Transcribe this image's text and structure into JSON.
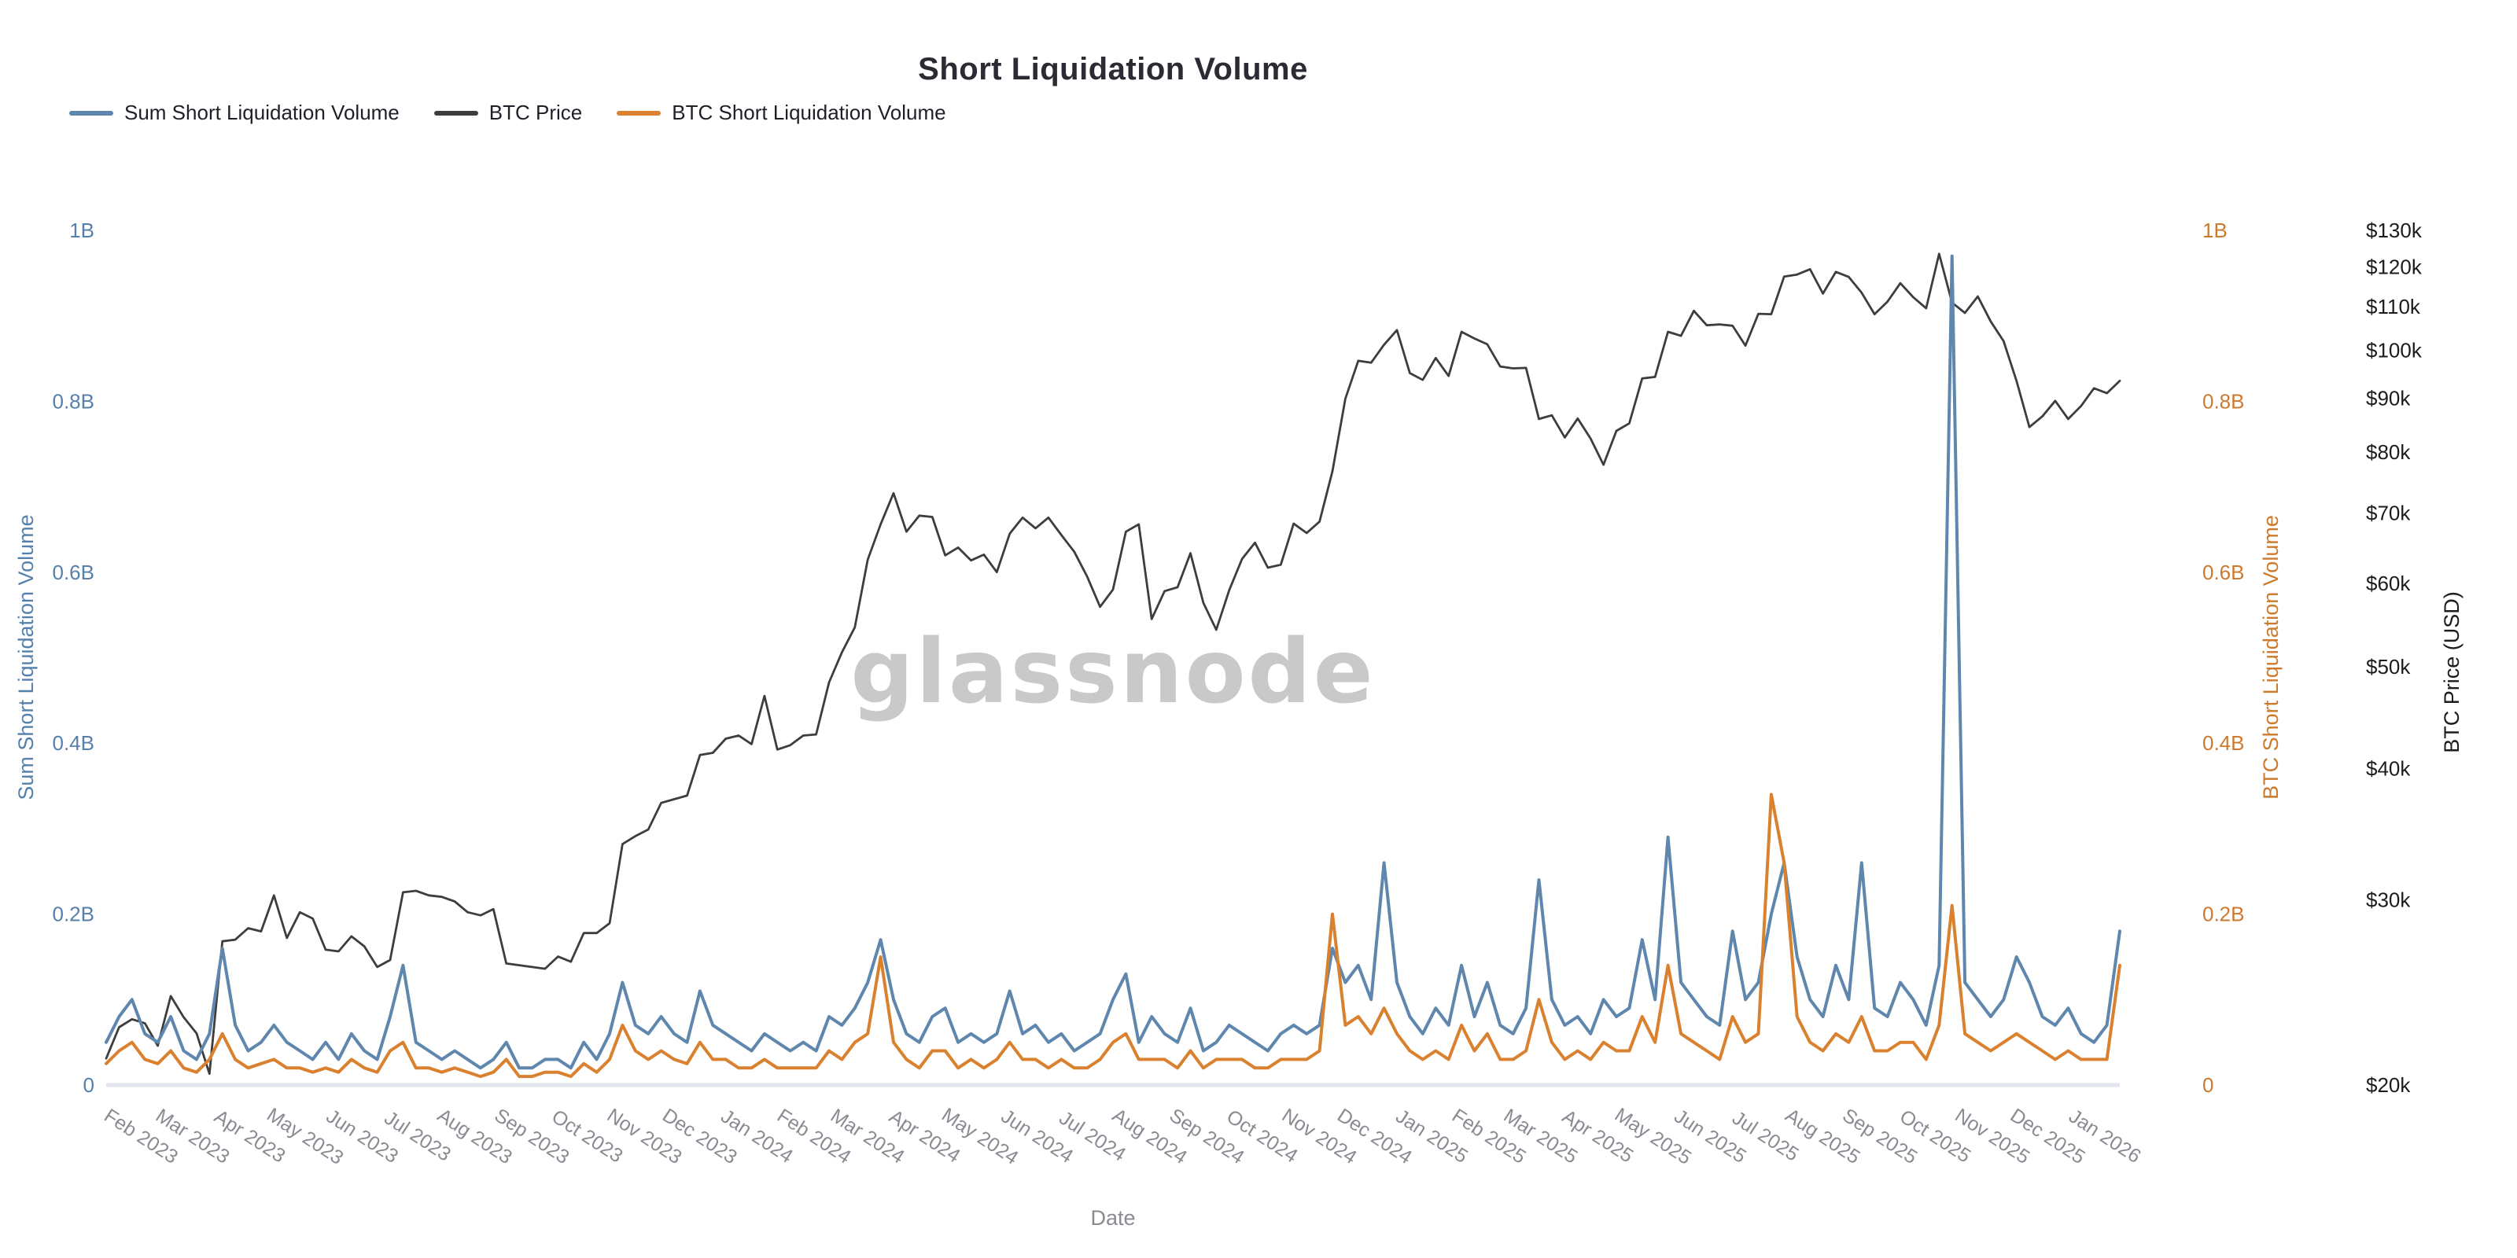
{
  "title": "Short Liquidation Volume",
  "watermark": "glassnode",
  "legend": {
    "items": [
      {
        "label": "Sum Short Liquidation Volume",
        "color": "#5f87ad"
      },
      {
        "label": "BTC Price",
        "color": "#3d3d3d"
      },
      {
        "label": "BTC Short Liquidation Volume",
        "color": "#d9812f"
      }
    ]
  },
  "axes": {
    "x": {
      "title": "Date",
      "label_color": "#8a8a92",
      "ticks": [
        {
          "label": "Feb 2023",
          "date": "2023-02-01"
        },
        {
          "label": "Mar 2023",
          "date": "2023-03-01"
        },
        {
          "label": "Apr 2023",
          "date": "2023-04-01"
        },
        {
          "label": "May 2023",
          "date": "2023-05-01"
        },
        {
          "label": "Jun 2023",
          "date": "2023-06-01"
        },
        {
          "label": "Jul 2023",
          "date": "2023-07-01"
        },
        {
          "label": "Aug 2023",
          "date": "2023-08-01"
        },
        {
          "label": "Sep 2023",
          "date": "2023-09-01"
        },
        {
          "label": "Oct 2023",
          "date": "2023-10-01"
        },
        {
          "label": "Nov 2023",
          "date": "2023-11-01"
        },
        {
          "label": "Dec 2023",
          "date": "2023-12-01"
        },
        {
          "label": "Jan 2024",
          "date": "2024-01-01"
        },
        {
          "label": "Feb 2024",
          "date": "2024-02-01"
        },
        {
          "label": "Mar 2024",
          "date": "2024-03-01"
        },
        {
          "label": "Apr 2024",
          "date": "2024-04-01"
        },
        {
          "label": "May 2024",
          "date": "2024-05-01"
        },
        {
          "label": "Jun 2024",
          "date": "2024-06-01"
        },
        {
          "label": "Jul 2024",
          "date": "2024-07-01"
        },
        {
          "label": "Aug 2024",
          "date": "2024-08-01"
        },
        {
          "label": "Sep 2024",
          "date": "2024-09-01"
        },
        {
          "label": "Oct 2024",
          "date": "2024-10-01"
        },
        {
          "label": "Nov 2024",
          "date": "2024-11-01"
        },
        {
          "label": "Dec 2024",
          "date": "2024-12-01"
        },
        {
          "label": "Jan 2025",
          "date": "2025-01-01"
        },
        {
          "label": "Feb 2025",
          "date": "2025-02-01"
        },
        {
          "label": "Mar 2025",
          "date": "2025-03-01"
        },
        {
          "label": "Apr 2025",
          "date": "2025-04-01"
        },
        {
          "label": "May 2025",
          "date": "2025-05-01"
        },
        {
          "label": "Jun 2025",
          "date": "2025-06-01"
        },
        {
          "label": "Jul 2025",
          "date": "2025-07-01"
        },
        {
          "label": "Aug 2025",
          "date": "2025-08-01"
        },
        {
          "label": "Sep 2025",
          "date": "2025-09-01"
        },
        {
          "label": "Oct 2025",
          "date": "2025-10-01"
        },
        {
          "label": "Nov 2025",
          "date": "2025-11-01"
        },
        {
          "label": "Dec 2025",
          "date": "2025-12-01"
        },
        {
          "label": "Jan 2026",
          "date": "2026-01-01"
        }
      ]
    },
    "left_volume": {
      "title": "Sum Short Liquidation Volume",
      "color": "#5580ab",
      "ticks": [
        {
          "value": 0,
          "label": "0"
        },
        {
          "value": 0.2,
          "label": "0.2B"
        },
        {
          "value": 0.4,
          "label": "0.4B"
        },
        {
          "value": 0.6,
          "label": "0.6B"
        },
        {
          "value": 0.8,
          "label": "0.8B"
        },
        {
          "value": 1,
          "label": "1B"
        }
      ]
    },
    "right_volume": {
      "title": "BTC Short Liquidation Volume",
      "color": "#cc7a2e",
      "ticks": [
        {
          "value": 0,
          "label": "0"
        },
        {
          "value": 0.2,
          "label": "0.2B"
        },
        {
          "value": 0.4,
          "label": "0.4B"
        },
        {
          "value": 0.6,
          "label": "0.6B"
        },
        {
          "value": 0.8,
          "label": "0.8B"
        },
        {
          "value": 1,
          "label": "1B"
        }
      ]
    },
    "right_price": {
      "title": "BTC Price (USD)",
      "color": "#1c1c1c",
      "scale": "log",
      "ticks": [
        {
          "value": 20,
          "label": "$20k"
        },
        {
          "value": 30,
          "label": "$30k"
        },
        {
          "value": 40,
          "label": "$40k"
        },
        {
          "value": 50,
          "label": "$50k"
        },
        {
          "value": 60,
          "label": "$60k"
        },
        {
          "value": 70,
          "label": "$70k"
        },
        {
          "value": 80,
          "label": "$80k"
        },
        {
          "value": 90,
          "label": "$90k"
        },
        {
          "value": 100,
          "label": "$100k"
        },
        {
          "value": 110,
          "label": "$110k"
        },
        {
          "value": 120,
          "label": "$120k"
        },
        {
          "value": 130,
          "label": "$130k"
        }
      ]
    }
  },
  "chart_data": {
    "type": "line",
    "x_start_date": "2023-01-15",
    "x_end_date": "2026-01-11",
    "x_interval_days": 7,
    "layout": {
      "legend_position": "top-left",
      "grid": false,
      "volume_axis_range_B": [
        0,
        1
      ],
      "price_axis_range_usd_k": [
        20,
        130
      ],
      "price_axis_scale": "log",
      "baseline_color": "#e4e6ee",
      "watermark_color": "#c9c9c9"
    },
    "series": [
      {
        "name": "Sum Short Liquidation Volume",
        "axis": "volume",
        "unit": "B USD",
        "color": "#5f87ad",
        "values": [
          0.05,
          0.08,
          0.1,
          0.06,
          0.05,
          0.08,
          0.04,
          0.03,
          0.06,
          0.16,
          0.07,
          0.04,
          0.05,
          0.07,
          0.05,
          0.04,
          0.03,
          0.05,
          0.03,
          0.06,
          0.04,
          0.03,
          0.08,
          0.14,
          0.05,
          0.04,
          0.03,
          0.04,
          0.03,
          0.02,
          0.03,
          0.05,
          0.02,
          0.02,
          0.03,
          0.03,
          0.02,
          0.05,
          0.03,
          0.06,
          0.12,
          0.07,
          0.06,
          0.08,
          0.06,
          0.05,
          0.11,
          0.07,
          0.06,
          0.05,
          0.04,
          0.06,
          0.05,
          0.04,
          0.05,
          0.04,
          0.08,
          0.07,
          0.09,
          0.12,
          0.17,
          0.1,
          0.06,
          0.05,
          0.08,
          0.09,
          0.05,
          0.06,
          0.05,
          0.06,
          0.11,
          0.06,
          0.07,
          0.05,
          0.06,
          0.04,
          0.05,
          0.06,
          0.1,
          0.13,
          0.05,
          0.08,
          0.06,
          0.05,
          0.09,
          0.04,
          0.05,
          0.07,
          0.06,
          0.05,
          0.04,
          0.06,
          0.07,
          0.06,
          0.07,
          0.16,
          0.12,
          0.14,
          0.1,
          0.26,
          0.12,
          0.08,
          0.06,
          0.09,
          0.07,
          0.14,
          0.08,
          0.12,
          0.07,
          0.06,
          0.09,
          0.24,
          0.1,
          0.07,
          0.08,
          0.06,
          0.1,
          0.08,
          0.09,
          0.17,
          0.1,
          0.29,
          0.12,
          0.1,
          0.08,
          0.07,
          0.18,
          0.1,
          0.12,
          0.2,
          0.26,
          0.15,
          0.1,
          0.08,
          0.14,
          0.1,
          0.26,
          0.09,
          0.08,
          0.12,
          0.1,
          0.07,
          0.14,
          0.97,
          0.12,
          0.1,
          0.08,
          0.1,
          0.15,
          0.12,
          0.08,
          0.07,
          0.09,
          0.06,
          0.05,
          0.07,
          0.18
        ]
      },
      {
        "name": "BTC Price",
        "axis": "price",
        "unit": "k USD",
        "color": "#3d3d3d",
        "values": [
          21.2,
          22.7,
          23.1,
          22.9,
          21.8,
          24.3,
          23.2,
          22.4,
          20.5,
          27.4,
          27.5,
          28.2,
          28.0,
          30.3,
          27.6,
          29.2,
          28.8,
          26.9,
          26.8,
          27.7,
          27.1,
          25.9,
          26.3,
          30.5,
          30.6,
          30.3,
          30.2,
          29.9,
          29.2,
          29.0,
          29.4,
          26.1,
          26.0,
          25.9,
          25.8,
          26.5,
          26.2,
          27.9,
          27.9,
          28.5,
          33.9,
          34.5,
          35.0,
          37.1,
          37.4,
          37.7,
          41.2,
          41.4,
          42.7,
          43.0,
          42.2,
          46.9,
          41.7,
          42.1,
          43.0,
          43.1,
          48.3,
          51.6,
          54.5,
          63.2,
          68.3,
          73.1,
          67.2,
          69.6,
          69.4,
          63.8,
          64.9,
          63.1,
          63.9,
          61.5,
          66.9,
          69.3,
          67.7,
          69.3,
          66.7,
          64.3,
          60.9,
          57.0,
          59.2,
          67.2,
          68.3,
          55.5,
          59.0,
          59.5,
          64.1,
          57.5,
          54.2,
          59.1,
          63.3,
          65.6,
          62.1,
          62.5,
          68.4,
          67.0,
          68.7,
          76.7,
          89.9,
          97.7,
          97.3,
          101.2,
          104.5,
          95.1,
          93.7,
          98.3,
          94.5,
          104.1,
          102.6,
          101.3,
          96.5,
          96.1,
          96.2,
          86.0,
          86.7,
          82.6,
          86.1,
          82.4,
          77.8,
          83.8,
          85.2,
          94.0,
          94.3,
          104.1,
          103.2,
          109.0,
          105.6,
          105.8,
          105.5,
          101.0,
          108.3,
          108.2,
          117.5,
          118.0,
          119.4,
          113.2,
          118.7,
          117.4,
          113.4,
          108.2,
          111.2,
          115.8,
          112.3,
          109.6,
          123.5,
          111.0,
          108.5,
          112.5,
          106.5,
          102.0,
          93.5,
          84.5,
          86.5,
          89.5,
          86.0,
          88.5,
          92.0,
          91.0,
          93.5
        ]
      },
      {
        "name": "BTC Short Liquidation Volume",
        "axis": "volume",
        "unit": "B USD",
        "color": "#d9812f",
        "values": [
          0.025,
          0.04,
          0.05,
          0.03,
          0.025,
          0.04,
          0.02,
          0.015,
          0.03,
          0.06,
          0.03,
          0.02,
          0.025,
          0.03,
          0.02,
          0.02,
          0.015,
          0.02,
          0.015,
          0.03,
          0.02,
          0.015,
          0.04,
          0.05,
          0.02,
          0.02,
          0.015,
          0.02,
          0.015,
          0.01,
          0.015,
          0.03,
          0.01,
          0.01,
          0.015,
          0.015,
          0.01,
          0.025,
          0.015,
          0.03,
          0.07,
          0.04,
          0.03,
          0.04,
          0.03,
          0.025,
          0.05,
          0.03,
          0.03,
          0.02,
          0.02,
          0.03,
          0.02,
          0.02,
          0.02,
          0.02,
          0.04,
          0.03,
          0.05,
          0.06,
          0.15,
          0.05,
          0.03,
          0.02,
          0.04,
          0.04,
          0.02,
          0.03,
          0.02,
          0.03,
          0.05,
          0.03,
          0.03,
          0.02,
          0.03,
          0.02,
          0.02,
          0.03,
          0.05,
          0.06,
          0.03,
          0.03,
          0.03,
          0.02,
          0.04,
          0.02,
          0.03,
          0.03,
          0.03,
          0.02,
          0.02,
          0.03,
          0.03,
          0.03,
          0.04,
          0.2,
          0.07,
          0.08,
          0.06,
          0.09,
          0.06,
          0.04,
          0.03,
          0.04,
          0.03,
          0.07,
          0.04,
          0.06,
          0.03,
          0.03,
          0.04,
          0.1,
          0.05,
          0.03,
          0.04,
          0.03,
          0.05,
          0.04,
          0.04,
          0.08,
          0.05,
          0.14,
          0.06,
          0.05,
          0.04,
          0.03,
          0.08,
          0.05,
          0.06,
          0.34,
          0.26,
          0.08,
          0.05,
          0.04,
          0.06,
          0.05,
          0.08,
          0.04,
          0.04,
          0.05,
          0.05,
          0.03,
          0.07,
          0.21,
          0.06,
          0.05,
          0.04,
          0.05,
          0.06,
          0.05,
          0.04,
          0.03,
          0.04,
          0.03,
          0.03,
          0.03,
          0.14
        ]
      }
    ]
  }
}
